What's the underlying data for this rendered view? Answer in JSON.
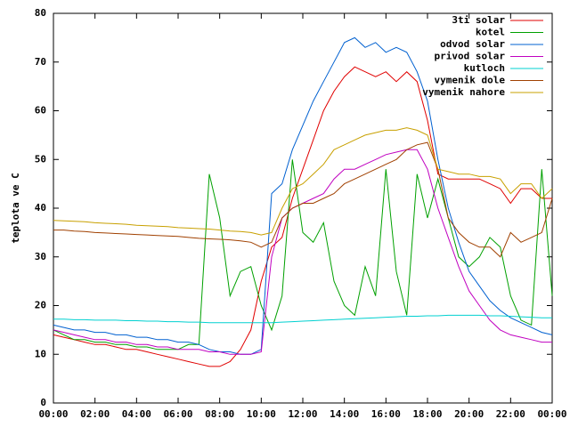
{
  "chart_data": {
    "type": "line",
    "y_label": "teplota ve C",
    "xlim": [
      0,
      24
    ],
    "ylim": [
      0,
      80
    ],
    "yticks": [
      0,
      10,
      20,
      30,
      40,
      50,
      60,
      70,
      80
    ],
    "xticks": [
      {
        "value": 0,
        "label": "00:00"
      },
      {
        "value": 2,
        "label": "02:00"
      },
      {
        "value": 4,
        "label": "04:00"
      },
      {
        "value": 6,
        "label": "06:00"
      },
      {
        "value": 8,
        "label": "08:00"
      },
      {
        "value": 10,
        "label": "10:00"
      },
      {
        "value": 12,
        "label": "12:00"
      },
      {
        "value": 14,
        "label": "14:00"
      },
      {
        "value": 16,
        "label": "16:00"
      },
      {
        "value": 18,
        "label": "18:00"
      },
      {
        "value": 20,
        "label": "20:00"
      },
      {
        "value": 22,
        "label": "22:00"
      },
      {
        "value": 24,
        "label": "00:00"
      }
    ],
    "legend": "top-right",
    "x": [
      0,
      0.5,
      1,
      1.5,
      2,
      2.5,
      3,
      3.5,
      4,
      4.5,
      5,
      5.5,
      6,
      6.5,
      7,
      7.5,
      8,
      8.5,
      9,
      9.5,
      10,
      10.5,
      11,
      11.5,
      12,
      12.5,
      13,
      13.5,
      14,
      14.5,
      15,
      15.5,
      16,
      16.5,
      17,
      17.5,
      18,
      18.5,
      19,
      19.5,
      20,
      20.5,
      21,
      21.5,
      22,
      22.5,
      23,
      23.5,
      24
    ],
    "series": [
      {
        "name": "3ti solar",
        "color": "#e00000",
        "values": [
          14,
          13.5,
          13,
          12.5,
          12,
          12,
          11.5,
          11,
          11,
          10.5,
          10,
          9.5,
          9,
          8.5,
          8,
          7.5,
          7.5,
          8.5,
          11,
          15,
          25,
          32,
          34,
          42,
          48,
          54,
          60,
          64,
          67,
          69,
          68,
          67,
          68,
          66,
          68,
          66,
          58,
          47,
          46,
          46,
          46,
          46,
          45,
          44,
          41,
          44,
          44,
          42,
          42
        ]
      },
      {
        "name": "kotel",
        "color": "#00a000",
        "values": [
          15,
          14,
          13,
          13,
          12.5,
          12.5,
          12,
          12,
          11.5,
          11.5,
          11,
          11,
          11,
          12,
          12,
          47,
          38,
          22,
          27,
          28,
          20,
          15,
          22,
          50,
          35,
          33,
          37,
          25,
          20,
          18,
          28,
          22,
          48,
          27,
          18,
          47,
          38,
          46,
          38,
          30,
          28,
          30,
          34,
          32,
          22,
          17,
          16,
          48,
          22
        ]
      },
      {
        "name": "odvod solar",
        "color": "#0060d0",
        "values": [
          16,
          15.5,
          15,
          15,
          14.5,
          14.5,
          14,
          14,
          13.5,
          13.5,
          13,
          13,
          12.5,
          12.5,
          12,
          11,
          10.5,
          10.5,
          10,
          10,
          11,
          43,
          45,
          52,
          57,
          62,
          66,
          70,
          74,
          75,
          73,
          74,
          72,
          73,
          72,
          68,
          62,
          50,
          40,
          33,
          27,
          24,
          21,
          19,
          17.5,
          16.5,
          15.5,
          14.5,
          14
        ]
      },
      {
        "name": "privod solar",
        "color": "#c000c0",
        "values": [
          15,
          14.5,
          14,
          13.5,
          13,
          13,
          12.5,
          12.5,
          12,
          12,
          11.5,
          11.5,
          11,
          11,
          11,
          10.5,
          10.5,
          10,
          10,
          10,
          10.5,
          30,
          38,
          40,
          41,
          42,
          43,
          46,
          48,
          48,
          49,
          50,
          51,
          51.5,
          52,
          52,
          48,
          40,
          34,
          28,
          23,
          20,
          17,
          15,
          14,
          13.5,
          13,
          12.5,
          12.5
        ]
      },
      {
        "name": "kutloch",
        "color": "#00d0d0",
        "values": [
          17.2,
          17.2,
          17.1,
          17.1,
          17,
          17,
          17,
          16.9,
          16.9,
          16.8,
          16.8,
          16.7,
          16.7,
          16.6,
          16.6,
          16.5,
          16.5,
          16.5,
          16.5,
          16.5,
          16.5,
          16.5,
          16.6,
          16.7,
          16.8,
          16.9,
          17,
          17.1,
          17.2,
          17.3,
          17.4,
          17.5,
          17.6,
          17.7,
          17.8,
          17.8,
          17.9,
          17.9,
          18,
          18,
          18,
          18,
          17.9,
          17.9,
          17.8,
          17.7,
          17.6,
          17.5,
          17.5
        ]
      },
      {
        "name": "vymenik dole",
        "color": "#a04000",
        "values": [
          35.5,
          35.5,
          35.3,
          35.2,
          35,
          34.9,
          34.8,
          34.7,
          34.6,
          34.5,
          34.4,
          34.3,
          34.2,
          34,
          33.8,
          33.7,
          33.6,
          33.5,
          33.3,
          33,
          32,
          33,
          38,
          40,
          41,
          41,
          42,
          43,
          45,
          46,
          47,
          48,
          49,
          50,
          52,
          53,
          53.5,
          48,
          38,
          35,
          33,
          32,
          32,
          30,
          35,
          33,
          34,
          35,
          42
        ]
      },
      {
        "name": "vymenik nahore",
        "color": "#c8a000",
        "values": [
          37.5,
          37.4,
          37.3,
          37.2,
          37,
          36.9,
          36.8,
          36.7,
          36.5,
          36.4,
          36.3,
          36.2,
          36,
          35.9,
          35.8,
          35.7,
          35.5,
          35.3,
          35.2,
          35,
          34.5,
          35,
          40,
          44,
          45,
          47,
          49,
          52,
          53,
          54,
          55,
          55.5,
          56,
          56,
          56.5,
          56,
          55,
          48,
          47.5,
          47,
          47,
          46.5,
          46.5,
          46,
          43,
          45,
          45,
          42,
          44
        ]
      }
    ]
  }
}
